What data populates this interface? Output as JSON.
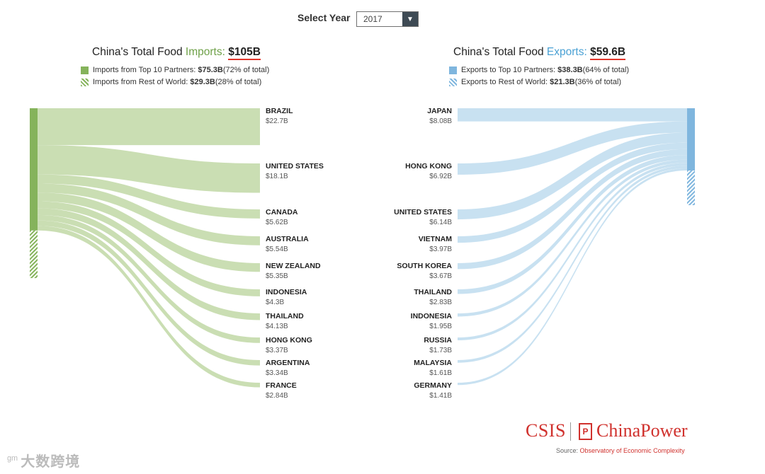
{
  "selector": {
    "label": "Select Year",
    "value": "2017",
    "arrow_icon": "chevron-down-icon"
  },
  "colors": {
    "imports": "#c7dcaf",
    "imports_bar": "#85b35b",
    "exports": "#c5dff0",
    "exports_bar": "#7fb6de",
    "accent_red": "#d0312d"
  },
  "imports": {
    "title_prefix": "China's Total Food ",
    "title_word": "Imports:",
    "total": "$105B",
    "legend_top_label": "Imports from Top 10 Partners: ",
    "legend_top_value": "$75.3B",
    "legend_top_pct": " (72% of total)",
    "legend_row_label": "Imports from Rest of World: ",
    "legend_row_value": "$29.3B",
    "legend_row_pct": " (28% of total)"
  },
  "exports": {
    "title_prefix": "China's Total Food ",
    "title_word": "Exports:",
    "total": "$59.6B",
    "legend_top_label": "Exports to Top 10 Partners: ",
    "legend_top_value": "$38.3B",
    "legend_top_pct": " (64% of total)",
    "legend_row_label": "Exports to Rest of World: ",
    "legend_row_value": "$21.3B",
    "legend_row_pct": " (36% of total)"
  },
  "chart_data": [
    {
      "type": "sankey",
      "title": "China's Total Food Imports: $105B",
      "unit": "USD billions",
      "year": "2017",
      "total": 105,
      "top10_total": 75.3,
      "rest_of_world": 29.3,
      "categories": [
        "BRAZIL",
        "UNITED STATES",
        "CANADA",
        "AUSTRALIA",
        "NEW ZEALAND",
        "INDONESIA",
        "THAILAND",
        "HONG KONG",
        "ARGENTINA",
        "FRANCE"
      ],
      "values": [
        22.7,
        18.1,
        5.62,
        5.54,
        5.35,
        4.3,
        4.13,
        3.37,
        3.34,
        2.84
      ],
      "value_labels": [
        "$22.7B",
        "$18.1B",
        "$5.62B",
        "$5.54B",
        "$5.35B",
        "$4.3B",
        "$4.13B",
        "$3.37B",
        "$3.34B",
        "$2.84B"
      ]
    },
    {
      "type": "sankey",
      "title": "China's Total Food Exports: $59.6B",
      "unit": "USD billions",
      "year": "2017",
      "total": 59.6,
      "top10_total": 38.3,
      "rest_of_world": 21.3,
      "categories": [
        "JAPAN",
        "HONG KONG",
        "UNITED STATES",
        "VIETNAM",
        "SOUTH KOREA",
        "THAILAND",
        "INDONESIA",
        "RUSSIA",
        "MALAYSIA",
        "GERMANY"
      ],
      "values": [
        8.08,
        6.92,
        6.14,
        3.97,
        3.67,
        2.83,
        1.95,
        1.73,
        1.61,
        1.41
      ],
      "value_labels": [
        "$8.08B",
        "$6.92B",
        "$6.14B",
        "$3.97B",
        "$3.67B",
        "$2.83B",
        "$1.95B",
        "$1.73B",
        "$1.61B",
        "$1.41B"
      ]
    }
  ],
  "branding": {
    "csis": "CSIS",
    "icon_glyph": "P",
    "chinapower": "ChinaPower",
    "source_prefix": "Source: ",
    "source_name": "Observatory of Economic Complexity"
  },
  "watermark": {
    "icon": "ᵍᵐ",
    "text": "大数跨境"
  }
}
